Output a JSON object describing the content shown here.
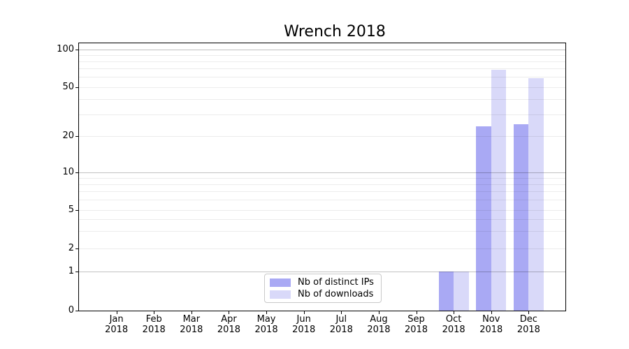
{
  "title": "Wrench 2018",
  "chart_data": {
    "type": "bar",
    "title": "Wrench 2018",
    "categories": [
      "Jan 2018",
      "Feb 2018",
      "Mar 2018",
      "Apr 2018",
      "May 2018",
      "Jun 2018",
      "Jul 2018",
      "Aug 2018",
      "Sep 2018",
      "Oct 2018",
      "Nov 2018",
      "Dec 2018"
    ],
    "series": [
      {
        "name": "Nb of distinct IPs",
        "color": "#a9a9f4",
        "values": [
          0,
          0,
          0,
          0,
          0,
          0,
          0,
          0,
          0,
          1,
          24,
          25
        ]
      },
      {
        "name": "Nb of downloads",
        "color": "#d9d9f9",
        "values": [
          0,
          0,
          0,
          0,
          0,
          0,
          0,
          0,
          0,
          1,
          69,
          59
        ]
      }
    ],
    "xlabel": "",
    "ylabel": "",
    "yscale": "symlog",
    "ylim": [
      0,
      100
    ],
    "ytick_labels": [
      "0",
      "1",
      "2",
      "5",
      "10",
      "20",
      "50",
      "100"
    ],
    "grid": "both",
    "legend_position": "lower center"
  },
  "legend": {
    "items": [
      {
        "label": "Nb of distinct IPs",
        "color": "#a9a9f4"
      },
      {
        "label": "Nb of downloads",
        "color": "#d9d9f9"
      }
    ]
  },
  "y_axis": {
    "ticks": [
      {
        "value": 0,
        "label": "0"
      },
      {
        "value": 1,
        "label": "1"
      },
      {
        "value": 2,
        "label": "2"
      },
      {
        "value": 5,
        "label": "5"
      },
      {
        "value": 10,
        "label": "10"
      },
      {
        "value": 20,
        "label": "20"
      },
      {
        "value": 50,
        "label": "50"
      },
      {
        "value": 100,
        "label": "100"
      }
    ],
    "anchors": [
      [
        0,
        445
      ],
      [
        1,
        388.5
      ],
      [
        2,
        355.5
      ],
      [
        5,
        300.5
      ],
      [
        10,
        246.5
      ],
      [
        20,
        195
      ],
      [
        50,
        124.5
      ],
      [
        100,
        70.9
      ]
    ],
    "grid_major_values": [
      1,
      10,
      100
    ],
    "grid_minor_values": [
      2,
      3,
      4,
      5,
      6,
      7,
      8,
      9,
      20,
      30,
      40,
      50,
      60,
      70,
      80,
      90
    ]
  },
  "colors": {
    "distinct_ips": "#a9a9f4",
    "downloads": "#d9d9f9",
    "spine": "#000000",
    "grid_major": "#c2c2c2",
    "grid_minor": "#ececec"
  }
}
